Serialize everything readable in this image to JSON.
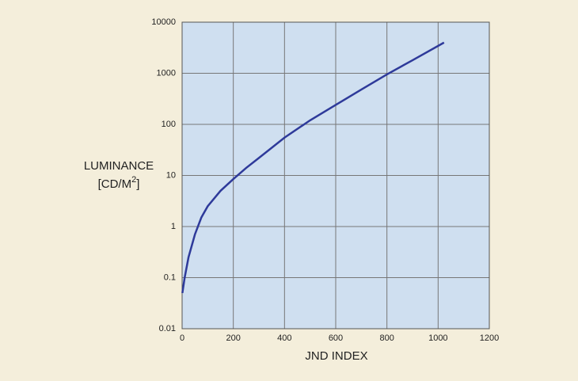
{
  "chart_data": {
    "type": "line",
    "xlabel": "JND INDEX",
    "ylabel": {
      "line1": "LUMINANCE",
      "line2": "[CD/M",
      "superscript": "2",
      "line2_end": "]"
    },
    "x": [
      1,
      10,
      25,
      50,
      75,
      100,
      150,
      200,
      250,
      300,
      400,
      500,
      600,
      700,
      800,
      900,
      1023
    ],
    "series": [
      {
        "color": "#2e3a9a",
        "values": [
          0.05,
          0.1,
          0.25,
          0.7,
          1.5,
          2.5,
          5,
          8.5,
          14,
          22,
          55,
          120,
          240,
          480,
          950,
          1800,
          3990
        ]
      }
    ],
    "xlim": [
      0,
      1200
    ],
    "xticks": [
      0,
      200,
      400,
      600,
      800,
      1000,
      1200
    ],
    "ylim": [
      0.01,
      10000
    ],
    "yticks": [
      0.01,
      0.1,
      1,
      10,
      100,
      1000,
      10000
    ],
    "yscale": "log",
    "grid": true
  }
}
